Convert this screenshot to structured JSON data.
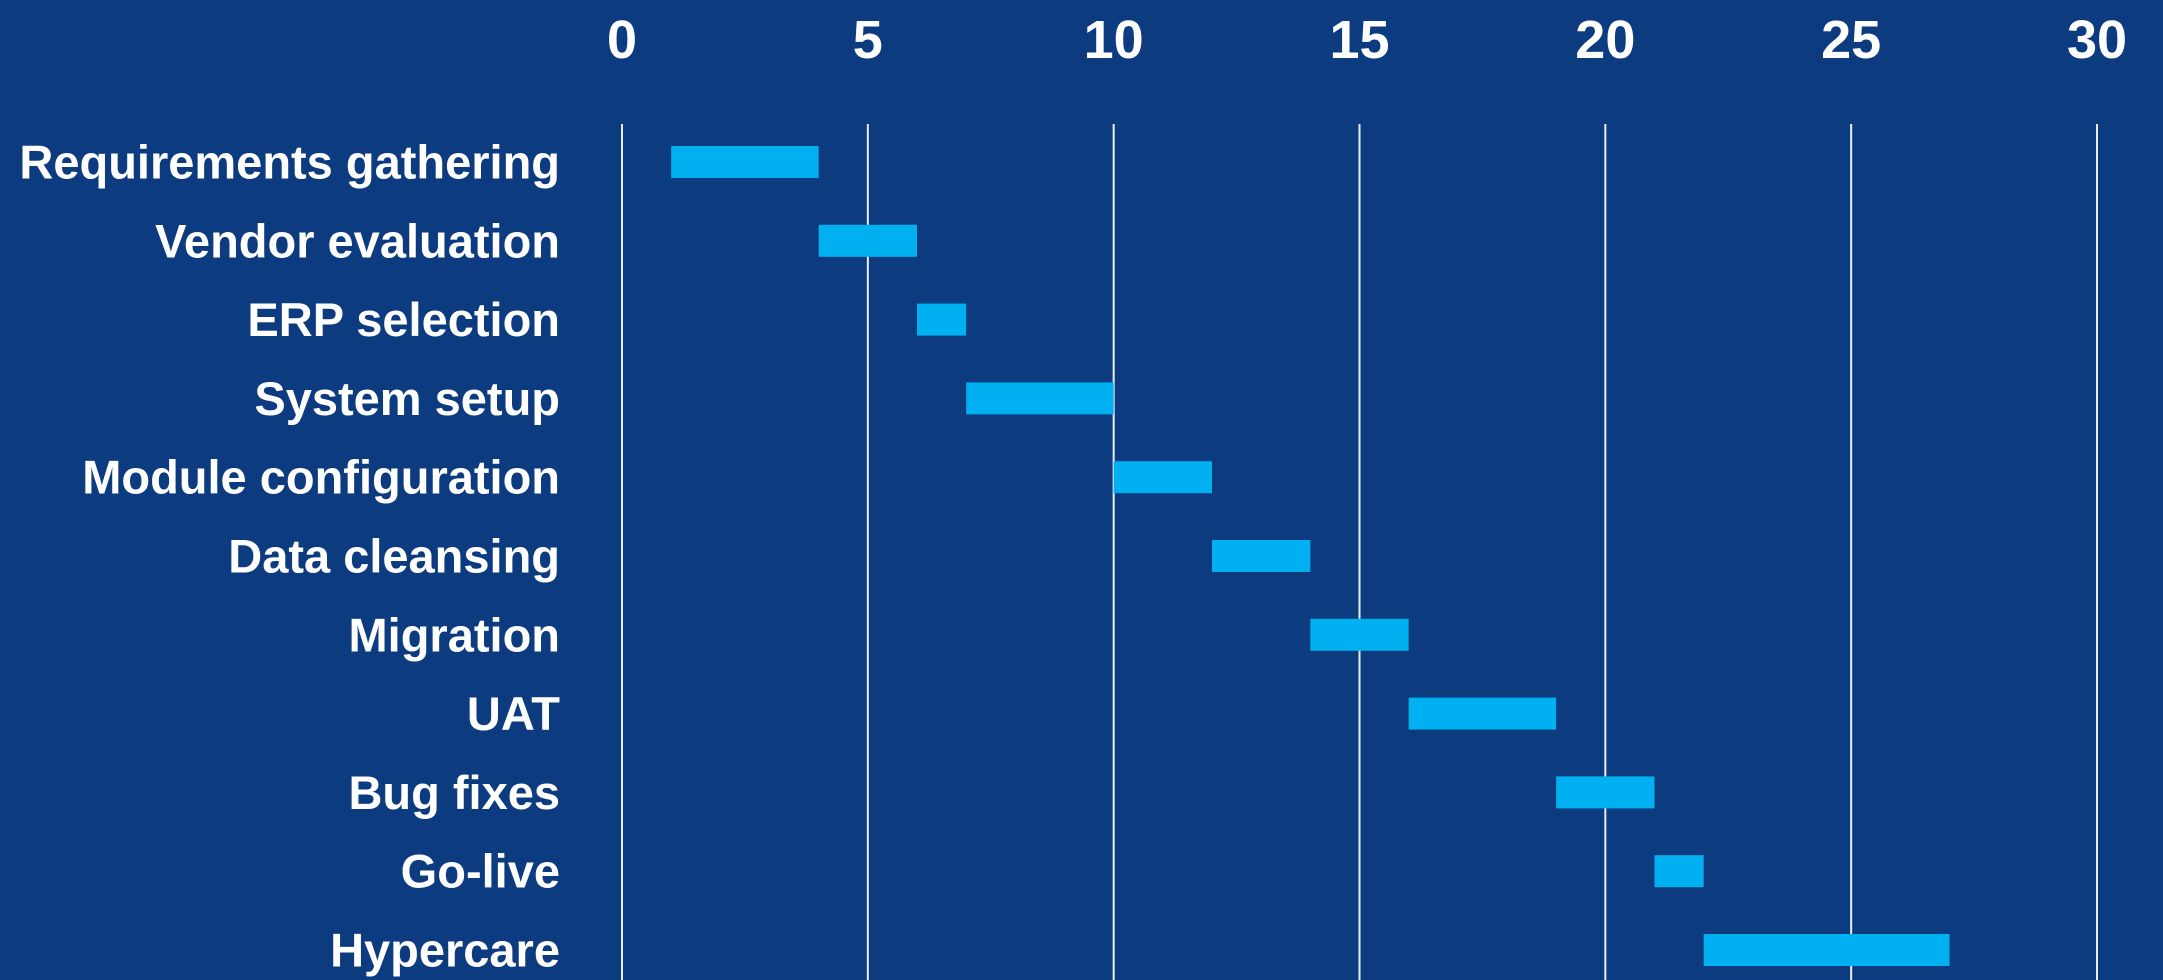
{
  "chart_data": {
    "type": "bar",
    "subtype": "gantt",
    "title": "",
    "xlabel": "",
    "ylabel": "",
    "xlim": [
      0,
      30
    ],
    "x_ticks": [
      0,
      5,
      10,
      15,
      20,
      25,
      30
    ],
    "x_tick_labels": [
      "0",
      "5",
      "10",
      "15",
      "20",
      "25",
      "30"
    ],
    "x_axis_position": "top",
    "grid": true,
    "legend": "none",
    "colors": {
      "background": "#0c3b80",
      "bar": "#00b0f0",
      "gridline": "#e8eef8",
      "text": "#ffffff"
    },
    "tasks": [
      {
        "label": "Requirements gathering",
        "start": 1,
        "end": 4
      },
      {
        "label": "Vendor evaluation",
        "start": 4,
        "end": 6
      },
      {
        "label": "ERP selection",
        "start": 6,
        "end": 7
      },
      {
        "label": "System setup",
        "start": 7,
        "end": 10
      },
      {
        "label": "Module configuration",
        "start": 10,
        "end": 12
      },
      {
        "label": "Data cleansing",
        "start": 12,
        "end": 14
      },
      {
        "label": "Migration",
        "start": 14,
        "end": 16
      },
      {
        "label": "UAT",
        "start": 16,
        "end": 19
      },
      {
        "label": "Bug fixes",
        "start": 19,
        "end": 21
      },
      {
        "label": "Go-live",
        "start": 21,
        "end": 22
      },
      {
        "label": "Hypercare",
        "start": 22,
        "end": 27
      }
    ]
  }
}
